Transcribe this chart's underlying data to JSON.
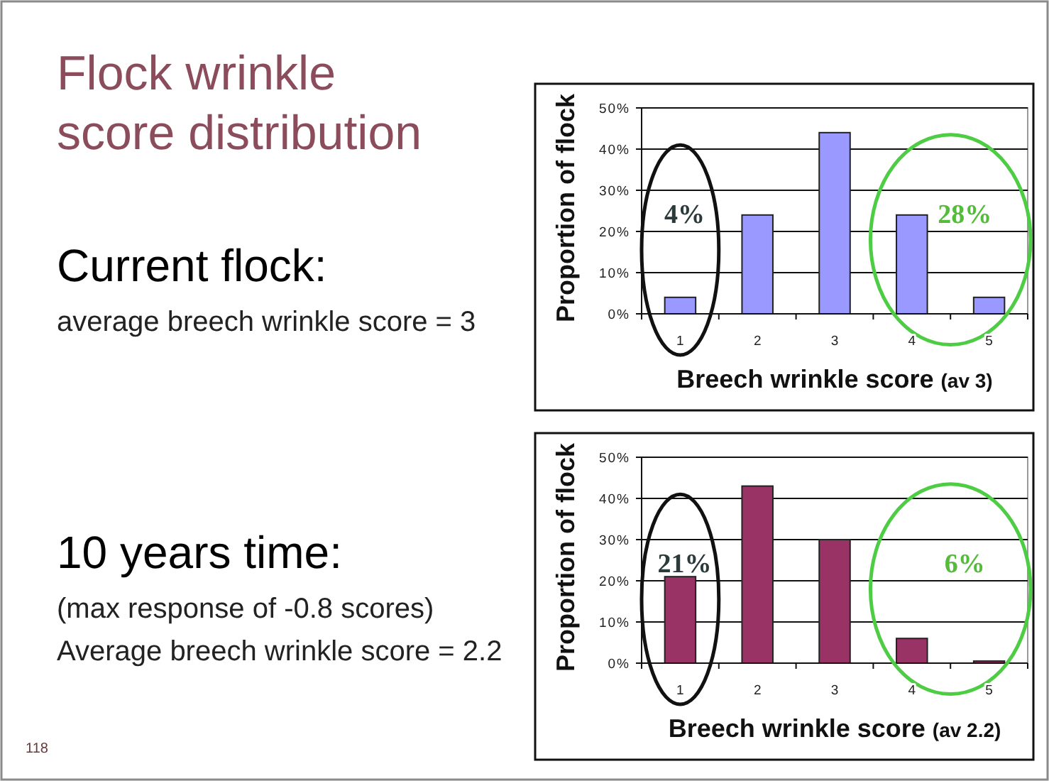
{
  "chart_data": [
    {
      "type": "other",
      "title": "Flock wrinkle score distribution",
      "annotations": [
        "Current flock:",
        "average breech wrinkle score = 3",
        "10 years time:",
        "(max response of -0.8 scores)",
        "Average breech wrinkle score = 2.2",
        "118"
      ]
    },
    {
      "type": "bar",
      "categories": [
        "1",
        "2",
        "3",
        "4",
        "5"
      ],
      "values": [
        4,
        24,
        44,
        24,
        4
      ],
      "color": "#9999ff",
      "ylim": [
        0,
        50
      ],
      "yticks": [
        {
          "value": 0,
          "label": "0%"
        },
        {
          "value": 10,
          "label": "10%"
        },
        {
          "value": 20,
          "label": "20%"
        },
        {
          "value": 30,
          "label": "30%"
        },
        {
          "value": 40,
          "label": "40%"
        },
        {
          "value": 50,
          "label": "50%"
        }
      ],
      "grid": "y",
      "ylabel": "Proportion of flock",
      "xlabel": "Breech wrinkle score (av 3)",
      "annotations": [
        "4%",
        "28%"
      ]
    },
    {
      "type": "bar",
      "categories": [
        "1",
        "2",
        "3",
        "4",
        "5"
      ],
      "values": [
        21,
        43,
        30,
        6,
        0.5
      ],
      "color": "#993366",
      "ylim": [
        0,
        50
      ],
      "yticks": [
        {
          "value": 0,
          "label": "0%"
        },
        {
          "value": 10,
          "label": "10%"
        },
        {
          "value": 20,
          "label": "20%"
        },
        {
          "value": 30,
          "label": "30%"
        },
        {
          "value": 40,
          "label": "40%"
        },
        {
          "value": 50,
          "label": "50%"
        }
      ],
      "grid": "y",
      "ylabel": "Proportion of flock",
      "xlabel": "Breech wrinkle score (av 2.2)",
      "annotations": [
        "21%",
        "6%"
      ]
    }
  ]
}
